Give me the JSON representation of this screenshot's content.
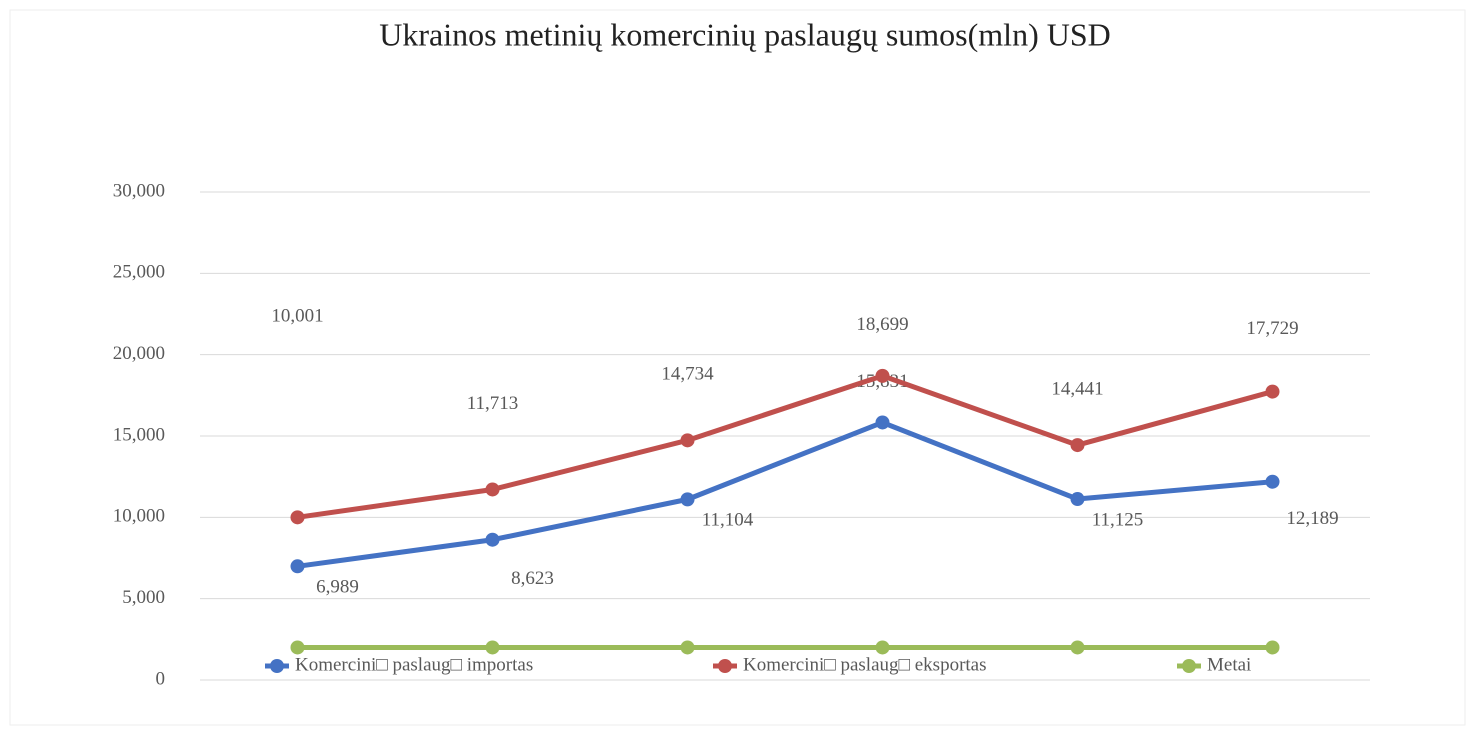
{
  "chart_data": {
    "type": "line",
    "title": "Ukrainos metinių komercinių paslaugų sumos(mln) USD",
    "categories": [
      null,
      null,
      null,
      null,
      null,
      null
    ],
    "series": [
      {
        "name": "Komercini□ paslaug□ importas",
        "color": "#4472c4",
        "values": [
          6989,
          8623,
          11104,
          15831,
          11125,
          12189
        ],
        "value_labels": [
          "6,989",
          "8,623",
          "11,104",
          "15,831",
          "11,125",
          "12,189"
        ]
      },
      {
        "name": "Komercini□ paslaug□ eksportas",
        "color": "#c0504d",
        "values": [
          10001,
          11713,
          14734,
          18699,
          14441,
          17729
        ],
        "value_labels": [
          "10,001",
          "11,713",
          "14,734",
          "18,699",
          "14,441",
          "17,729"
        ]
      },
      {
        "name": "Metai",
        "color": "#9bbb59",
        "values": [
          2000,
          2000,
          2000,
          2000,
          2000,
          2000
        ]
      }
    ],
    "ylim": [
      0,
      30000
    ],
    "yticks": [
      0,
      {
        "value": 5000,
        "label": "5,000"
      },
      {
        "value": 10000,
        "label": "10,000"
      },
      {
        "value": 15000,
        "label": "15,000"
      },
      {
        "value": 20000,
        "label": "20,000"
      },
      {
        "value": 25000,
        "label": "25,000"
      },
      {
        "value": 30000,
        "label": "30,000"
      }
    ],
    "grid": true,
    "legend": "bottom"
  }
}
